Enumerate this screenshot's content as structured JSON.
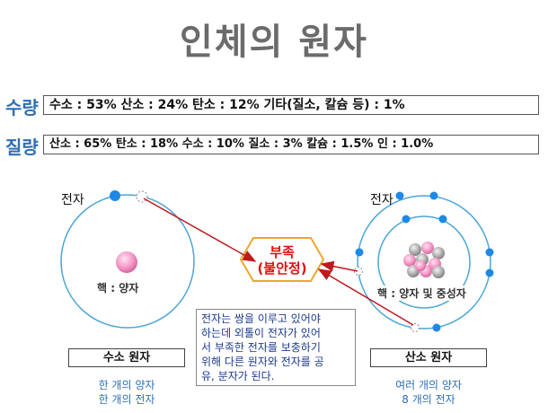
{
  "title": "인체의 원자",
  "rows": [
    {
      "label": "수량",
      "content": "수소 : 53%    산소 : 24%    탄소 : 12%    기타(질소, 칼슘 등) : 1%"
    },
    {
      "label": "질량",
      "content": "산소 : 65%  탄소 : 18%  수소 : 10%  질소 : 3%  칼슘 : 1.5%  인 : 1.0%"
    }
  ],
  "hydrogen": {
    "electron_label": "전자",
    "nucleus_label": "핵 : 양자",
    "name": "수소 원자",
    "note_line1": "한 개의 양자",
    "note_line2": "한 개의 전자"
  },
  "oxygen": {
    "electron_label": "전자",
    "nucleus_label": "핵 : 양자 및 중성자",
    "name": "산소 원자",
    "note_line1": "여러 개의 양자",
    "note_line2": "8 개의 전자"
  },
  "center": {
    "line1": "부족",
    "line2": "(불안정)"
  },
  "description": {
    "line1": "전자는 쌍을 이루고 있어야",
    "line2": "하는데 외톨이 전자가 있어",
    "line3": "서 부족한 전자를 보충하기",
    "line4": "위해 다른 원자와 전자를 공",
    "line5": "유, 분자가 된다."
  },
  "colors": {
    "title": "#6b6b6b",
    "row_label": "#2f6fb5",
    "orbit": "#4ba6d8",
    "electron": "#1e88e5",
    "nucleus_pink": "#f59ac8",
    "neutron_gray": "#a9a9a9",
    "arrow": "#c0181d",
    "hexagon_border": "#e8a92b",
    "hexagon_text": "#e01010",
    "description_text": "#1c3a8c"
  }
}
